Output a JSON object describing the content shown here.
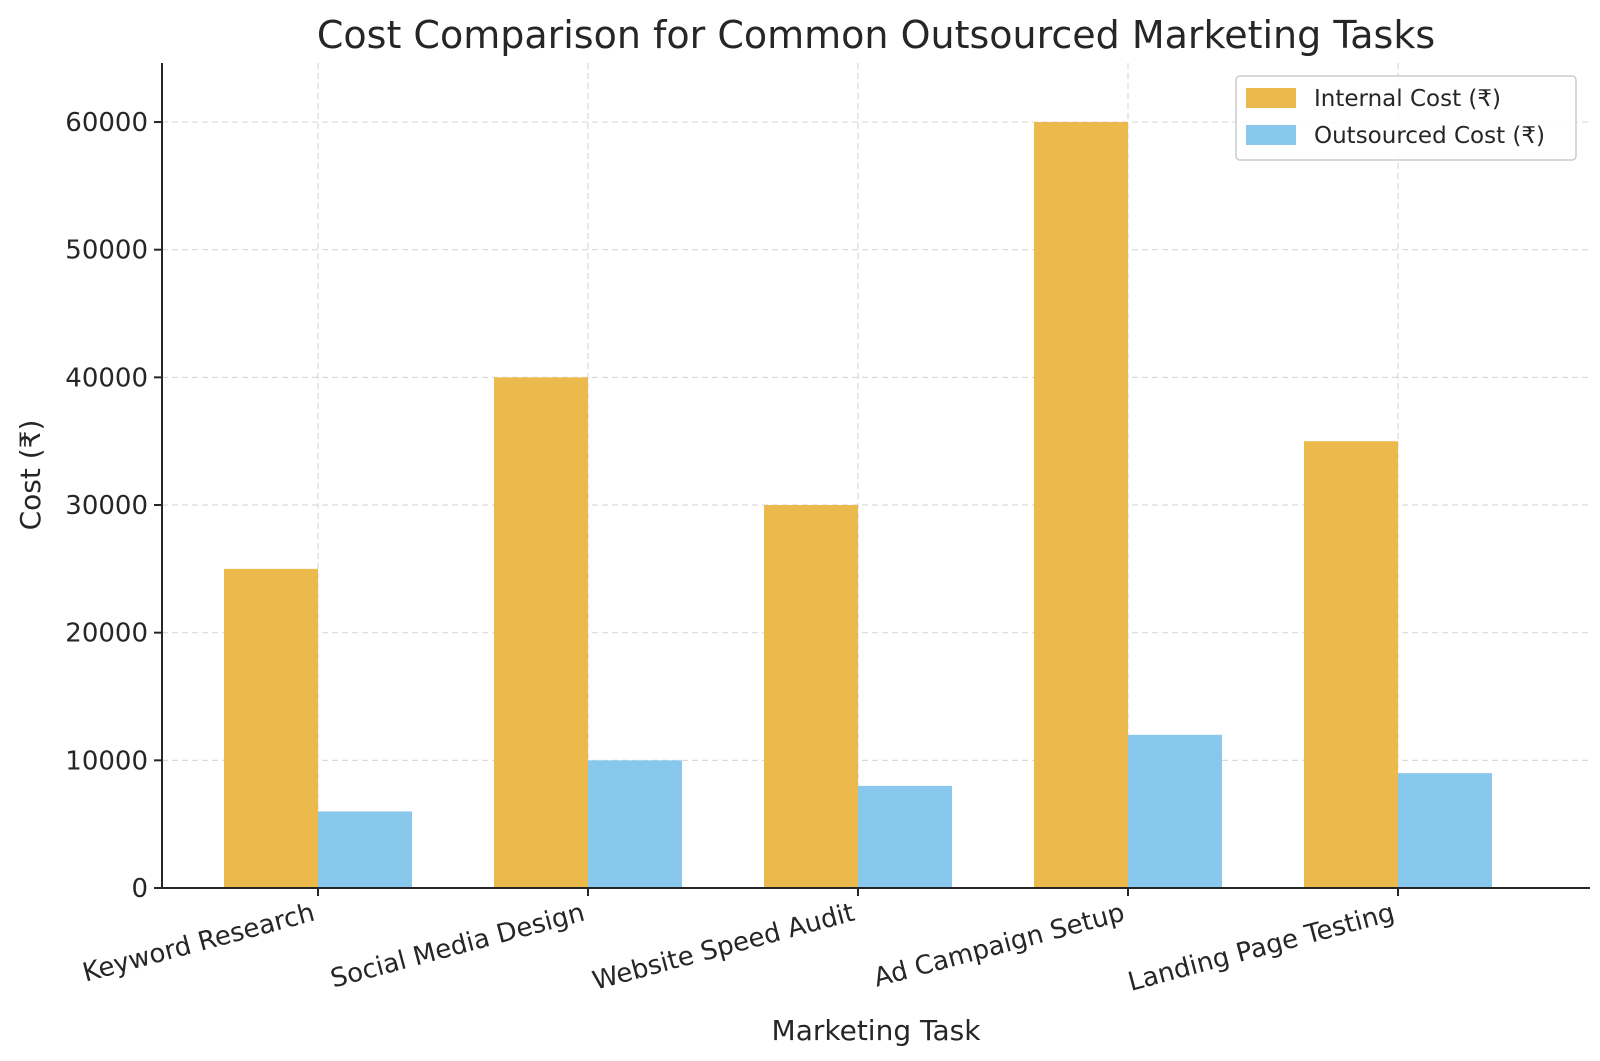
{
  "colors": {
    "internal": "#ebb94c",
    "outsourced": "#89c8ed",
    "grid": "#d9d9d9",
    "axis": "#262626"
  },
  "chart_data": {
    "type": "bar",
    "title": "Cost Comparison for Common Outsourced Marketing Tasks",
    "xlabel": "Marketing Task",
    "ylabel": "Cost (₹)",
    "categories": [
      "Keyword Research",
      "Social Media Design",
      "Website Speed Audit",
      "Ad Campaign Setup",
      "Landing Page Testing"
    ],
    "series": [
      {
        "name": "Internal Cost (₹)",
        "values": [
          25000,
          40000,
          30000,
          60000,
          35000
        ]
      },
      {
        "name": "Outsourced Cost (₹)",
        "values": [
          6000,
          10000,
          8000,
          12000,
          9000
        ]
      }
    ],
    "ylim": [
      0,
      63000
    ],
    "yticks": [
      0,
      10000,
      20000,
      30000,
      40000,
      50000,
      60000
    ],
    "ytick_labels": [
      "0",
      "10000",
      "20000",
      "30000",
      "40000",
      "50000",
      "60000"
    ],
    "grid": true,
    "legend_position": "top-right"
  }
}
